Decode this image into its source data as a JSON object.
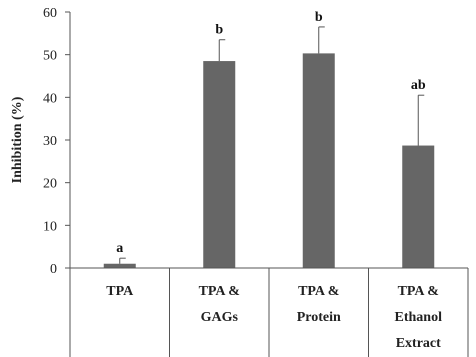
{
  "chart_data": {
    "type": "bar",
    "ylabel": "Inhibition (%)",
    "ylim": [
      0,
      60
    ],
    "yticks": [
      "0",
      "10",
      "20",
      "30",
      "40",
      "50",
      "60"
    ],
    "categories": [
      [
        "TPA"
      ],
      [
        "TPA &",
        "GAGs"
      ],
      [
        "TPA &",
        "Protein"
      ],
      [
        "TPA &",
        "Ethanol",
        "Extract"
      ]
    ],
    "values": [
      1.0,
      48.5,
      50.3,
      28.7
    ],
    "errors": [
      1.3,
      5.0,
      6.2,
      11.8
    ],
    "significance": [
      "a",
      "b",
      "b",
      "ab"
    ],
    "bar_color": "#666666",
    "grid": false
  }
}
